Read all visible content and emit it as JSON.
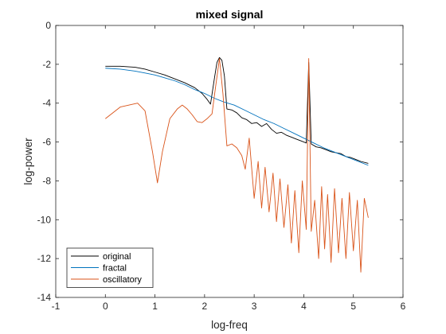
{
  "chart_data": {
    "type": "line",
    "title": "mixed signal",
    "xlabel": "log-freq",
    "ylabel": "log-power",
    "xlim": [
      -1,
      6
    ],
    "ylim": [
      -14,
      0
    ],
    "xticks": [
      "-1",
      "0",
      "1",
      "2",
      "3",
      "4",
      "5",
      "6"
    ],
    "yticks": [
      "-14",
      "-12",
      "-10",
      "-8",
      "-6",
      "-4",
      "-2",
      "0"
    ],
    "grid": false,
    "legend_position": "bottom-left",
    "series": [
      {
        "name": "original",
        "color": "#000000",
        "points": [
          [
            0.0,
            -2.1
          ],
          [
            0.3,
            -2.1
          ],
          [
            0.6,
            -2.15
          ],
          [
            0.8,
            -2.25
          ],
          [
            1.0,
            -2.4
          ],
          [
            1.2,
            -2.55
          ],
          [
            1.4,
            -2.75
          ],
          [
            1.6,
            -2.95
          ],
          [
            1.8,
            -3.2
          ],
          [
            1.95,
            -3.5
          ],
          [
            2.05,
            -3.8
          ],
          [
            2.12,
            -4.05
          ],
          [
            2.2,
            -2.7
          ],
          [
            2.25,
            -1.9
          ],
          [
            2.3,
            -1.65
          ],
          [
            2.35,
            -1.8
          ],
          [
            2.4,
            -2.6
          ],
          [
            2.45,
            -4.3
          ],
          [
            2.55,
            -4.35
          ],
          [
            2.65,
            -4.5
          ],
          [
            2.75,
            -4.75
          ],
          [
            2.85,
            -4.85
          ],
          [
            2.95,
            -5.05
          ],
          [
            3.05,
            -5.0
          ],
          [
            3.15,
            -5.2
          ],
          [
            3.25,
            -5.05
          ],
          [
            3.35,
            -5.35
          ],
          [
            3.45,
            -5.55
          ],
          [
            3.55,
            -5.5
          ],
          [
            3.65,
            -5.65
          ],
          [
            3.75,
            -5.75
          ],
          [
            3.85,
            -5.85
          ],
          [
            3.95,
            -5.95
          ],
          [
            4.05,
            -6.05
          ],
          [
            4.1,
            -1.9
          ],
          [
            4.15,
            -6.1
          ],
          [
            4.25,
            -6.25
          ],
          [
            4.35,
            -6.3
          ],
          [
            4.45,
            -6.4
          ],
          [
            4.55,
            -6.5
          ],
          [
            4.65,
            -6.55
          ],
          [
            4.75,
            -6.6
          ],
          [
            4.85,
            -6.75
          ],
          [
            4.95,
            -6.8
          ],
          [
            5.05,
            -6.9
          ],
          [
            5.15,
            -7.0
          ],
          [
            5.3,
            -7.1
          ]
        ]
      },
      {
        "name": "fractal",
        "color": "#0072BD",
        "points": [
          [
            0.0,
            -2.2
          ],
          [
            0.3,
            -2.25
          ],
          [
            0.6,
            -2.35
          ],
          [
            0.8,
            -2.45
          ],
          [
            1.0,
            -2.55
          ],
          [
            1.2,
            -2.7
          ],
          [
            1.4,
            -2.85
          ],
          [
            1.6,
            -3.05
          ],
          [
            1.8,
            -3.3
          ],
          [
            2.0,
            -3.5
          ],
          [
            2.2,
            -3.75
          ],
          [
            2.4,
            -3.95
          ],
          [
            2.6,
            -4.1
          ],
          [
            2.8,
            -4.35
          ],
          [
            3.0,
            -4.6
          ],
          [
            3.2,
            -4.85
          ],
          [
            3.4,
            -5.05
          ],
          [
            3.6,
            -5.3
          ],
          [
            3.8,
            -5.55
          ],
          [
            4.0,
            -5.8
          ],
          [
            4.2,
            -6.05
          ],
          [
            4.4,
            -6.3
          ],
          [
            4.6,
            -6.5
          ],
          [
            4.8,
            -6.7
          ],
          [
            5.0,
            -6.9
          ],
          [
            5.3,
            -7.2
          ]
        ]
      },
      {
        "name": "oscillatory",
        "color": "#D95319",
        "points": [
          [
            0.0,
            -4.8
          ],
          [
            0.3,
            -4.2
          ],
          [
            0.65,
            -4.0
          ],
          [
            0.8,
            -4.4
          ],
          [
            0.95,
            -6.5
          ],
          [
            1.05,
            -8.1
          ],
          [
            1.15,
            -6.5
          ],
          [
            1.3,
            -4.8
          ],
          [
            1.45,
            -4.3
          ],
          [
            1.55,
            -4.1
          ],
          [
            1.65,
            -4.3
          ],
          [
            1.75,
            -4.6
          ],
          [
            1.85,
            -4.95
          ],
          [
            1.95,
            -5.0
          ],
          [
            2.05,
            -4.8
          ],
          [
            2.15,
            -4.55
          ],
          [
            2.22,
            -3.2
          ],
          [
            2.3,
            -1.7
          ],
          [
            2.37,
            -3.5
          ],
          [
            2.45,
            -6.2
          ],
          [
            2.55,
            -6.1
          ],
          [
            2.65,
            -6.3
          ],
          [
            2.75,
            -6.7
          ],
          [
            2.82,
            -7.4
          ],
          [
            2.9,
            -5.8
          ],
          [
            3.0,
            -8.9
          ],
          [
            3.08,
            -7.0
          ],
          [
            3.15,
            -9.4
          ],
          [
            3.22,
            -7.3
          ],
          [
            3.3,
            -9.6
          ],
          [
            3.38,
            -7.6
          ],
          [
            3.45,
            -10.1
          ],
          [
            3.52,
            -7.9
          ],
          [
            3.6,
            -10.4
          ],
          [
            3.68,
            -8.2
          ],
          [
            3.75,
            -11.2
          ],
          [
            3.82,
            -8.5
          ],
          [
            3.9,
            -11.7
          ],
          [
            3.97,
            -8.0
          ],
          [
            4.05,
            -10.5
          ],
          [
            4.1,
            -1.7
          ],
          [
            4.15,
            -10.6
          ],
          [
            4.22,
            -9.0
          ],
          [
            4.3,
            -12.0
          ],
          [
            4.36,
            -8.3
          ],
          [
            4.42,
            -11.5
          ],
          [
            4.48,
            -8.7
          ],
          [
            4.55,
            -12.2
          ],
          [
            4.62,
            -8.4
          ],
          [
            4.7,
            -11.7
          ],
          [
            4.77,
            -8.9
          ],
          [
            4.85,
            -12.0
          ],
          [
            4.92,
            -8.6
          ],
          [
            5.0,
            -11.6
          ],
          [
            5.08,
            -9.0
          ],
          [
            5.15,
            -12.7
          ],
          [
            5.22,
            -8.9
          ],
          [
            5.3,
            -9.9
          ]
        ]
      }
    ]
  }
}
